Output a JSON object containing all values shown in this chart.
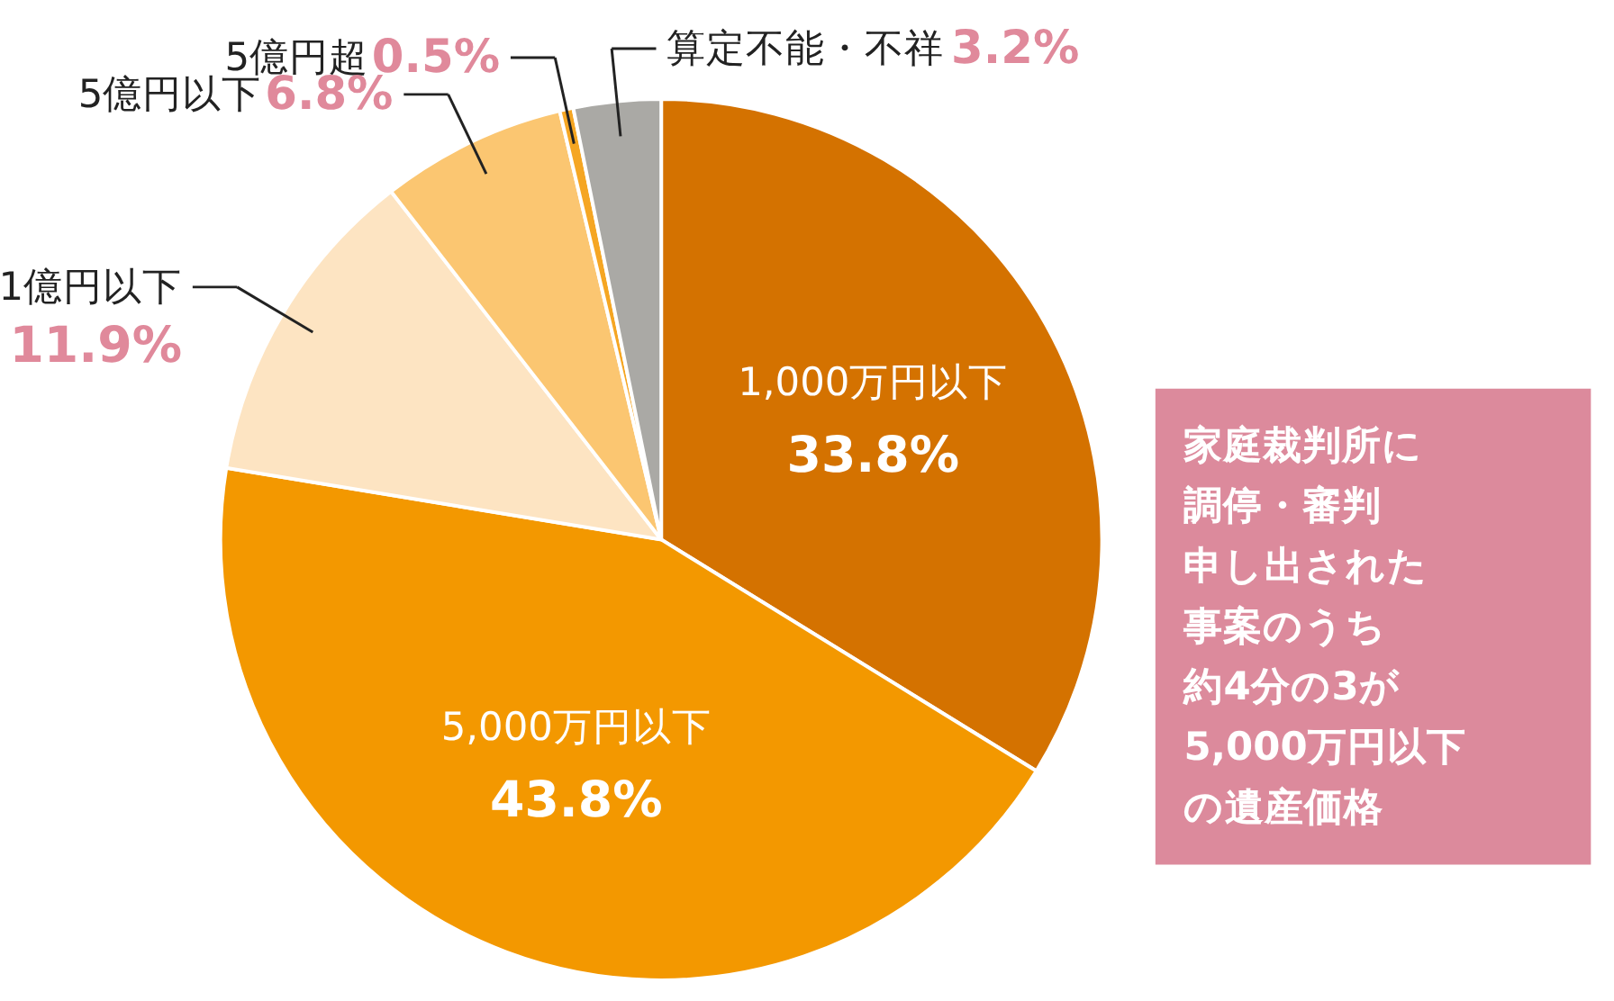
{
  "chart_data": {
    "type": "pie",
    "categories": [
      "1,000万円以下",
      "5,000万円以下",
      "1億円以下",
      "5億円以下",
      "5億円超",
      "算定不能・不祥"
    ],
    "values": [
      33.8,
      43.8,
      11.9,
      6.8,
      0.5,
      3.2
    ],
    "value_labels": [
      "33.8%",
      "43.8%",
      "11.9%",
      "6.8%",
      "0.5%",
      "3.2%"
    ],
    "colors": [
      "#d47200",
      "#f39800",
      "#fde4c2",
      "#fbc671",
      "#f5a623",
      "#aaa9a5"
    ],
    "legend": false,
    "annotations": [
      "家庭裁判所に",
      "調停・審判",
      "申し出された",
      "事案のうち",
      "約4分の3が",
      "5,000万円以下",
      "の遺産価格"
    ]
  }
}
